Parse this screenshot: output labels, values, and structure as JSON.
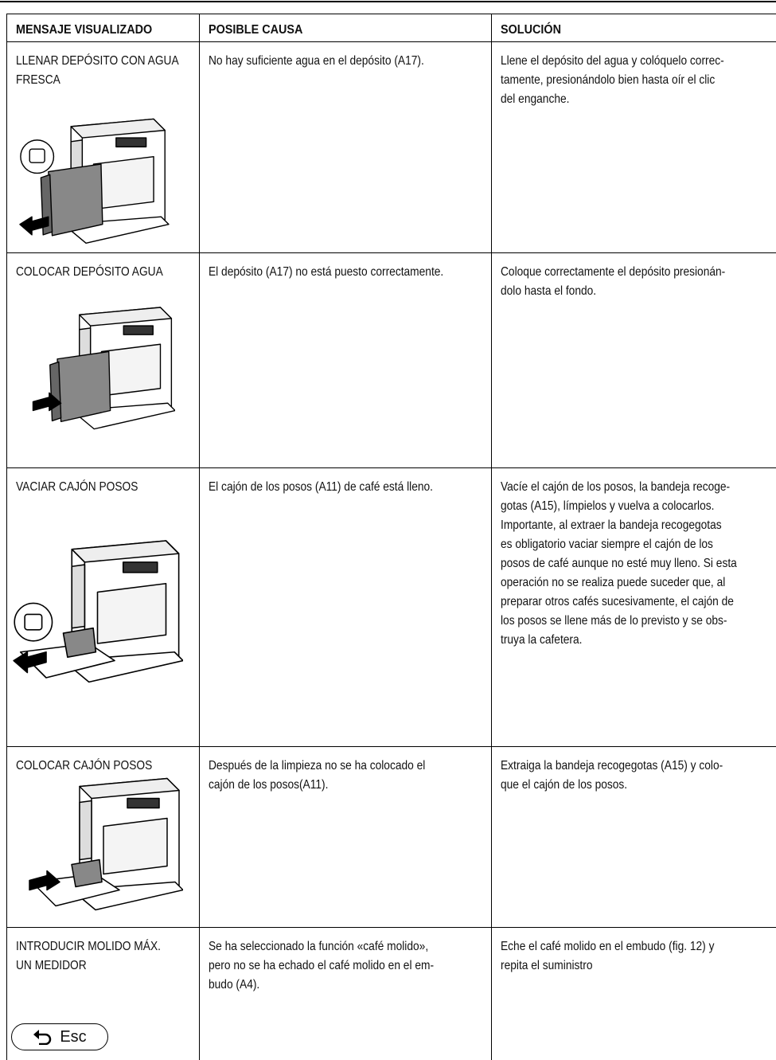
{
  "table": {
    "header": [
      "MENSAJE VISUALIZADO",
      "POSIBLE CAUSA",
      "SOLUCIÓN"
    ],
    "rows": [
      {
        "message": [
          "LLENAR DEPÓSITO CON AGUA",
          "FRESCA"
        ],
        "cause": [
          "No hay suficiente agua en el depósito (A17)."
        ],
        "solution": [
          "Llene el depósito del agua y colóquelo correc-",
          "tamente, presionándolo bien hasta oír el clic",
          "del enganche."
        ]
      },
      {
        "message": [
          "COLOCAR DEPÓSITO AGUA"
        ],
        "cause": [
          "El depósito (A17) no está puesto correctamente."
        ],
        "solution": [
          "Coloque correctamente el depósito presionán-",
          "dolo hasta el fondo."
        ]
      },
      {
        "message": [
          "VACIAR CAJÓN POSOS"
        ],
        "cause": [
          "El cajón de los posos (A11) de café está lleno."
        ],
        "solution": [
          "Vacíe el cajón de los posos, la bandeja recoge-",
          "gotas (A15), límpielos y vuelva a colocarlos.",
          "Importante, al extraer la bandeja recogegotas",
          "es obligatorio vaciar siempre el cajón de los",
          "posos de café aunque no esté muy lleno. Si esta",
          "operación no se realiza puede suceder que, al",
          "preparar otros cafés sucesivamente, el cajón de",
          "los posos se llene más de lo previsto y se obs-",
          "truya la cafetera."
        ]
      },
      {
        "message": [
          "COLOCAR CAJÓN POSOS"
        ],
        "cause": [
          "Después de la limpieza no se ha colocado el",
          "cajón de los posos(A11)."
        ],
        "solution": [
          "Extraiga la bandeja recogegotas (A15) y colo-",
          "que el cajón de los posos."
        ]
      },
      {
        "message": [
          "INTRODUCIR MOLIDO MÁX.",
          "UN MEDIDOR"
        ],
        "cause": [
          "Se ha seleccionado la función «café molido»,",
          "pero no se ha echado el café molido en el em-",
          "budo (A4)."
        ],
        "solution": [
          "Eche el café molido en el embudo (fig. 12)  y",
          "repita el suministro"
        ],
        "button": "Esc"
      }
    ]
  }
}
